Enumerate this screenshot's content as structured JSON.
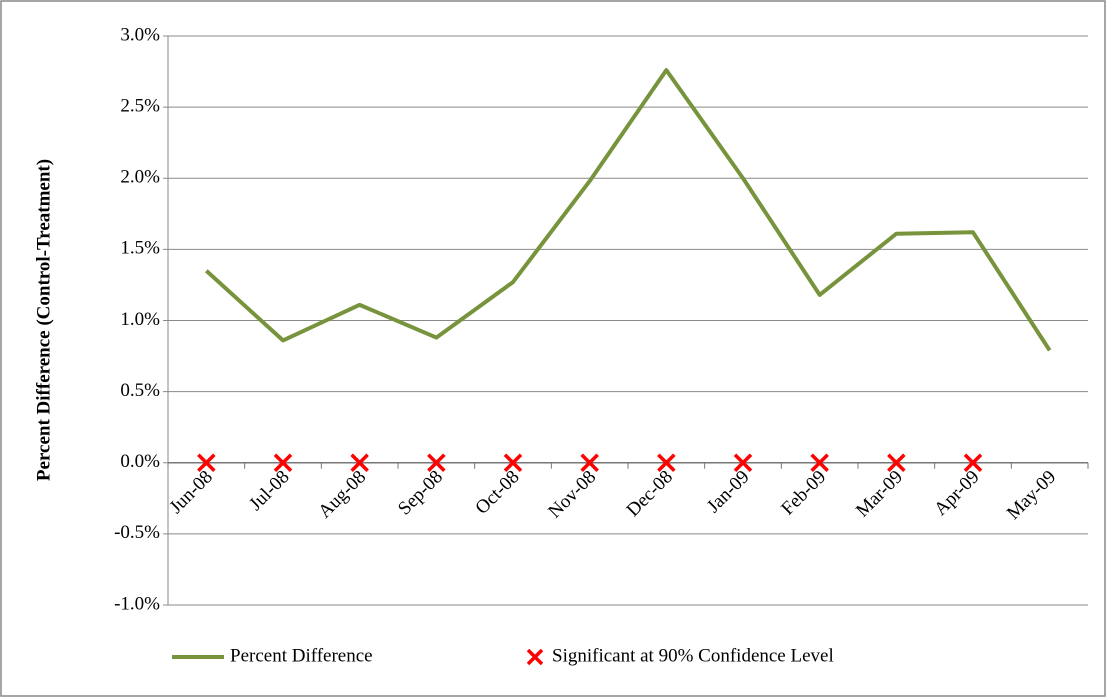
{
  "chart_data": {
    "type": "line",
    "y_label": "Percent Difference (Control-Treatment)",
    "categories": [
      "Jun-08",
      "Jul-08",
      "Aug-08",
      "Sep-08",
      "Oct-08",
      "Nov-08",
      "Dec-08",
      "Jan-09",
      "Feb-09",
      "Mar-09",
      "Apr-09",
      "May-09"
    ],
    "series": [
      {
        "name": "Percent Difference",
        "color": "#77933c",
        "values": [
          1.35,
          0.86,
          1.11,
          0.88,
          1.27,
          1.98,
          2.76,
          2.0,
          1.18,
          1.61,
          1.62,
          0.79
        ]
      },
      {
        "name": "Significant at 90% Confidence Level",
        "color": "#ff0000",
        "marker": "x",
        "values": [
          0,
          0,
          0,
          0,
          0,
          0,
          0,
          0,
          0,
          0,
          0,
          null
        ]
      }
    ],
    "ylim": [
      -1,
      3
    ],
    "yticks": [
      {
        "value": -1,
        "label": "-1.0%"
      },
      {
        "value": -0.5,
        "label": "-0.5%"
      },
      {
        "value": 0,
        "label": "0.0%"
      },
      {
        "value": 0.5,
        "label": "0.5%"
      },
      {
        "value": 1,
        "label": "1.0%"
      },
      {
        "value": 1.5,
        "label": "1.5%"
      },
      {
        "value": 2,
        "label": "2.0%"
      },
      {
        "value": 2.5,
        "label": "2.5%"
      },
      {
        "value": 3,
        "label": "3.0%"
      }
    ],
    "grid": true,
    "legend": "bottom"
  }
}
